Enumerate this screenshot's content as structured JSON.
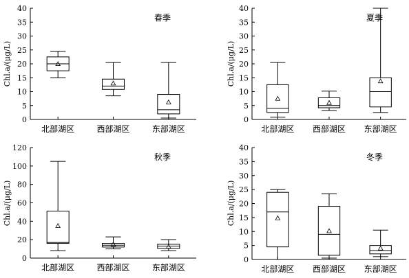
{
  "chart_data": [
    {
      "type": "boxplot",
      "season": "春季",
      "ylabel": "Chl.a/(μg/L)",
      "ylim": [
        0,
        40
      ],
      "yticks": [
        0,
        5,
        10,
        15,
        20,
        25,
        30,
        35,
        40
      ],
      "categories": [
        "北部湖区",
        "西部湖区",
        "东部湖区"
      ],
      "boxes": [
        {
          "whisker_low": 15,
          "q1": 17.5,
          "median": 20,
          "q3": 22.5,
          "whisker_high": 24.5,
          "mean": 20
        },
        {
          "whisker_low": 8.5,
          "q1": 10.8,
          "median": 12,
          "q3": 14.5,
          "whisker_high": 20.5,
          "mean": 13
        },
        {
          "whisker_low": 0.5,
          "q1": 2,
          "median": 3.5,
          "q3": 9,
          "whisker_high": 20.5,
          "mean": 6.2
        }
      ]
    },
    {
      "type": "boxplot",
      "season": "夏季",
      "ylabel": "Chl.a/(μg/L)",
      "ylim": [
        0,
        40
      ],
      "yticks": [
        0,
        5,
        10,
        15,
        20,
        25,
        30,
        35,
        40
      ],
      "categories": [
        "北部湖区",
        "西部湖区",
        "东部湖区"
      ],
      "boxes": [
        {
          "whisker_low": 0.8,
          "q1": 2.5,
          "median": 4,
          "q3": 12.5,
          "whisker_high": 20.5,
          "mean": 7.5
        },
        {
          "whisker_low": 3.2,
          "q1": 4.2,
          "median": 5,
          "q3": 7.8,
          "whisker_high": 10.2,
          "mean": 6
        },
        {
          "whisker_low": 2.5,
          "q1": 4.5,
          "median": 10,
          "q3": 15,
          "whisker_high": 40,
          "mean": 13.8
        }
      ]
    },
    {
      "type": "boxplot",
      "season": "秋季",
      "ylabel": "Chl.a/(μg/L)",
      "ylim": [
        0,
        120
      ],
      "yticks": [
        0,
        20,
        40,
        60,
        80,
        100,
        120
      ],
      "categories": [
        "北部湖区",
        "西部湖区",
        "东部湖区"
      ],
      "boxes": [
        {
          "whisker_low": 8,
          "q1": 16,
          "median": 17,
          "q3": 51,
          "whisker_high": 105,
          "mean": 35
        },
        {
          "whisker_low": 10,
          "q1": 12,
          "median": 14,
          "q3": 16,
          "whisker_high": 23,
          "mean": 15
        },
        {
          "whisker_low": 8,
          "q1": 10.5,
          "median": 13,
          "q3": 15,
          "whisker_high": 20,
          "mean": 12.5
        }
      ]
    },
    {
      "type": "boxplot",
      "season": "冬季",
      "ylabel": "Chl.a/(μg/L)",
      "ylim": [
        0,
        40
      ],
      "yticks": [
        0,
        5,
        10,
        15,
        20,
        25,
        30,
        35,
        40
      ],
      "categories": [
        "北部湖区",
        "西部湖区",
        "东部湖区"
      ],
      "boxes": [
        {
          "whisker_low": 0,
          "q1": 4.5,
          "median": 17,
          "q3": 24,
          "whisker_high": 25,
          "mean": 14.8
        },
        {
          "whisker_low": 0.5,
          "q1": 1.5,
          "median": 9,
          "q3": 19,
          "whisker_high": 23.5,
          "mean": 10.2
        },
        {
          "whisker_low": 1,
          "q1": 2,
          "median": 3.2,
          "q3": 5,
          "whisker_high": 10.5,
          "mean": 4
        }
      ]
    }
  ]
}
